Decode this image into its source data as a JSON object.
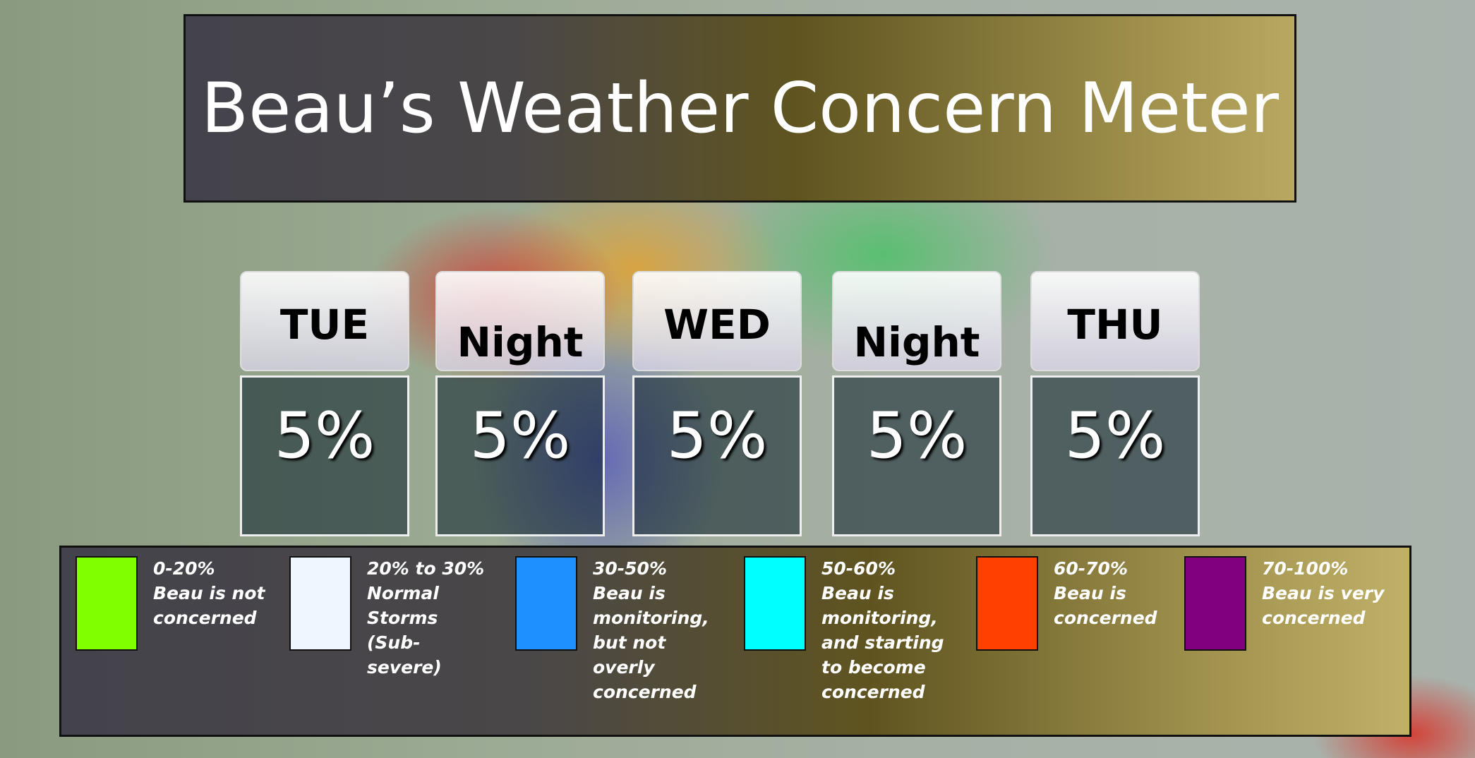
{
  "title": "Beau’s Weather Concern Meter",
  "days": [
    {
      "label": "TUE",
      "value": "5%"
    },
    {
      "label": "Night",
      "value": "5%"
    },
    {
      "label": "WED",
      "value": "5%"
    },
    {
      "label": "Night",
      "value": "5%"
    },
    {
      "label": "THU",
      "value": "5%"
    }
  ],
  "legend": [
    {
      "color": "#80ff00",
      "range": "0-20%",
      "description": "Beau is not concerned"
    },
    {
      "color": "#eef6ff",
      "range": "20% to 30%",
      "description": "Normal Storms (Sub-severe)"
    },
    {
      "color": "#1e90ff",
      "range": "30-50%",
      "description": "Beau is monitoring, but not overly concerned"
    },
    {
      "color": "#00ffff",
      "range": "50-60%",
      "description": "Beau is monitoring, and starting to become concerned"
    },
    {
      "color": "#ff4000",
      "range": "60-70%",
      "description": "Beau is concerned"
    },
    {
      "color": "#800080",
      "range": "70-100%",
      "description": "Beau is very concerned"
    }
  ]
}
